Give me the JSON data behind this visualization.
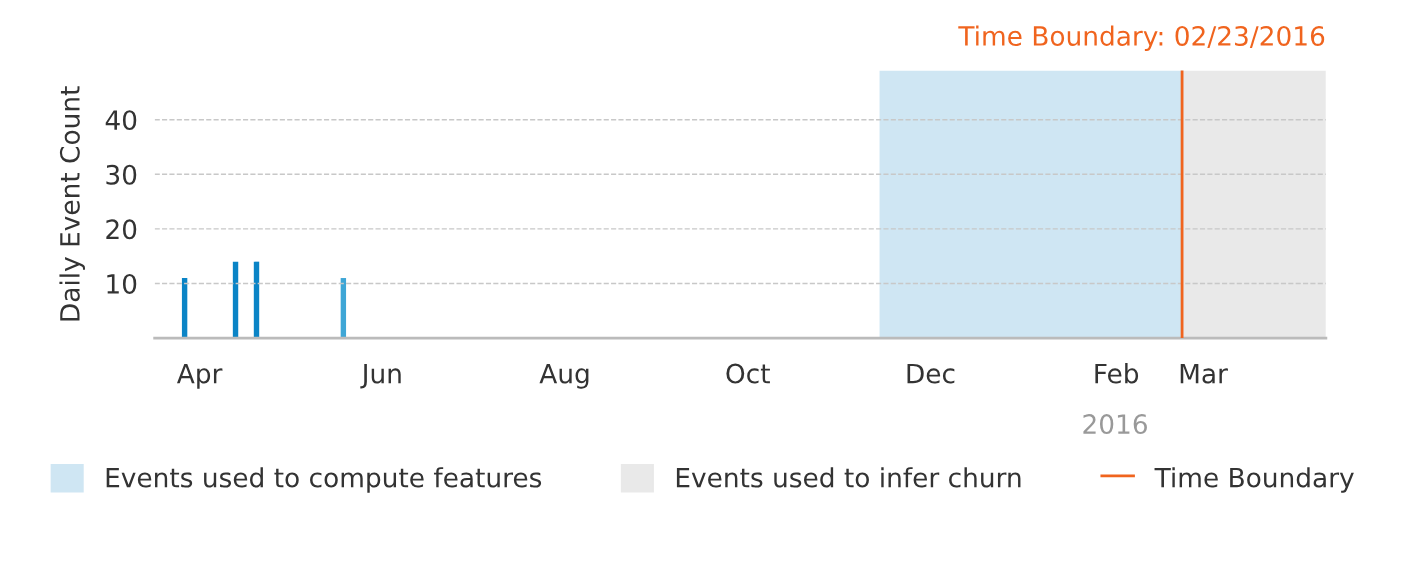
{
  "chart_data": {
    "type": "bar",
    "title": "Time Boundary: 02/23/2016",
    "ylabel": "Daily Event Count",
    "x": [
      "2015-03-27",
      "2015-04-13",
      "2015-04-20",
      "2015-05-19"
    ],
    "values": [
      11,
      14,
      14,
      11
    ],
    "colors": [
      "#0a84c6",
      "#0a84c6",
      "#0a84c6",
      "#3ea6d6"
    ],
    "xlim": [
      "2015-03-17",
      "2016-04-11"
    ],
    "xticks": [
      {
        "value": "2015-04-01",
        "label": "Apr"
      },
      {
        "value": "2015-06-01",
        "label": "Jun"
      },
      {
        "value": "2015-08-01",
        "label": "Aug"
      },
      {
        "value": "2015-10-01",
        "label": "Oct"
      },
      {
        "value": "2015-12-01",
        "label": "Dec"
      },
      {
        "value": "2016-02-01",
        "label": "Feb"
      },
      {
        "value": "2016-03-01",
        "label": "Mar"
      }
    ],
    "ylim": [
      0,
      49
    ],
    "yticks": [
      10,
      20,
      30,
      40
    ],
    "grid": "y",
    "legend": "bottom",
    "bands": [
      {
        "axis": "x",
        "from": "2015-11-14",
        "to": "2016-02-23",
        "label": "Events used to compute features",
        "color": "#cfe6f3"
      },
      {
        "axis": "x",
        "from": "2016-02-23",
        "to": "2016-04-11",
        "label": "Events used to infer churn",
        "color": "#e9e9e9"
      }
    ],
    "ref_lines": [
      {
        "axis": "x",
        "value": "2016-02-23",
        "label": "Time Boundary",
        "color": "#f0641e",
        "line_style": "solid"
      }
    ],
    "annotations": [
      "2016"
    ]
  }
}
